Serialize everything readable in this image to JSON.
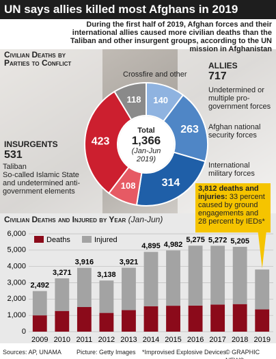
{
  "header": {
    "title": "UN says allies killed most Afghans in 2019",
    "subtitle": "During the first half of 2019, Afghan forces and their international allies caused more civilian deaths than the Taliban and other insurgent groups, according to the UN mission in Afghanistan"
  },
  "chart_data": [
    {
      "type": "donut",
      "title": "Civilian Deaths by Parties to Conflict",
      "categories": [
        "Undetermined or multiple pro-government forces",
        "Afghan national security forces",
        "International military forces",
        "So-called Islamic State and undetermined anti-government elements",
        "Taliban",
        "Crossfire and other"
      ],
      "values": [
        140,
        263,
        314,
        108,
        423,
        118
      ],
      "colors": [
        "#8fb3e0",
        "#4f86c6",
        "#1f5fa8",
        "#e65a64",
        "#cc1f2f",
        "#8a8a8a"
      ],
      "groups": [
        {
          "name": "ALLIES",
          "value": 717
        },
        {
          "name": "INSURGENTS",
          "value": 531
        }
      ],
      "total_title": "Total",
      "total": {
        "value": 1366,
        "label": "1,366"
      },
      "total_note": "(Jan-Jun 2019)"
    },
    {
      "type": "stacked-bar",
      "title": "Civilian Deaths and Injured by Year",
      "subtitle": "(Jan-Jun)",
      "categories": [
        "2009",
        "2010",
        "2011",
        "2012",
        "2013",
        "2014",
        "2015",
        "2016",
        "2017",
        "2018",
        "2019"
      ],
      "series": [
        {
          "name": "Deaths",
          "color": "#8b0a1a",
          "values": [
            1000,
            1270,
            1510,
            1150,
            1320,
            1560,
            1590,
            1600,
            1660,
            1690,
            1366
          ]
        },
        {
          "name": "Injured",
          "color": "#a3a3a3",
          "values": [
            1492,
            2001,
            2406,
            1988,
            2601,
            3335,
            3392,
            3675,
            3612,
            3515,
            2446
          ]
        }
      ],
      "totals": [
        2492,
        3271,
        3916,
        3138,
        3921,
        4895,
        4982,
        5275,
        5272,
        5205,
        null
      ],
      "total_labels": [
        "2,492",
        "3,271",
        "3,916",
        "3,138",
        "3,921",
        "4,895",
        "4,982",
        "5,275",
        "5,272",
        "5,205",
        null
      ],
      "ylim": [
        0,
        6000
      ],
      "yticks": [
        0,
        {
          "value": 1000,
          "label": "1,000"
        },
        {
          "value": 2000,
          "label": "2,000"
        },
        {
          "value": 3000,
          "label": "3,000"
        },
        {
          "value": 4000,
          "label": "4,000"
        },
        {
          "value": 5000,
          "label": "5,000"
        },
        {
          "value": 6000,
          "label": "6,000"
        }
      ],
      "grid": true,
      "callout_title": "3,812 deaths and injuries:",
      "callout_text": "33 percent caused by ground engagements and 28 percent by IEDs*"
    }
  ],
  "footer": {
    "sources": "Sources: AP, UNAMA",
    "picture": "Picture: Getty Images",
    "note": "*Improvised Explosive Devices",
    "credit": "© GRAPHIC NEWS"
  }
}
